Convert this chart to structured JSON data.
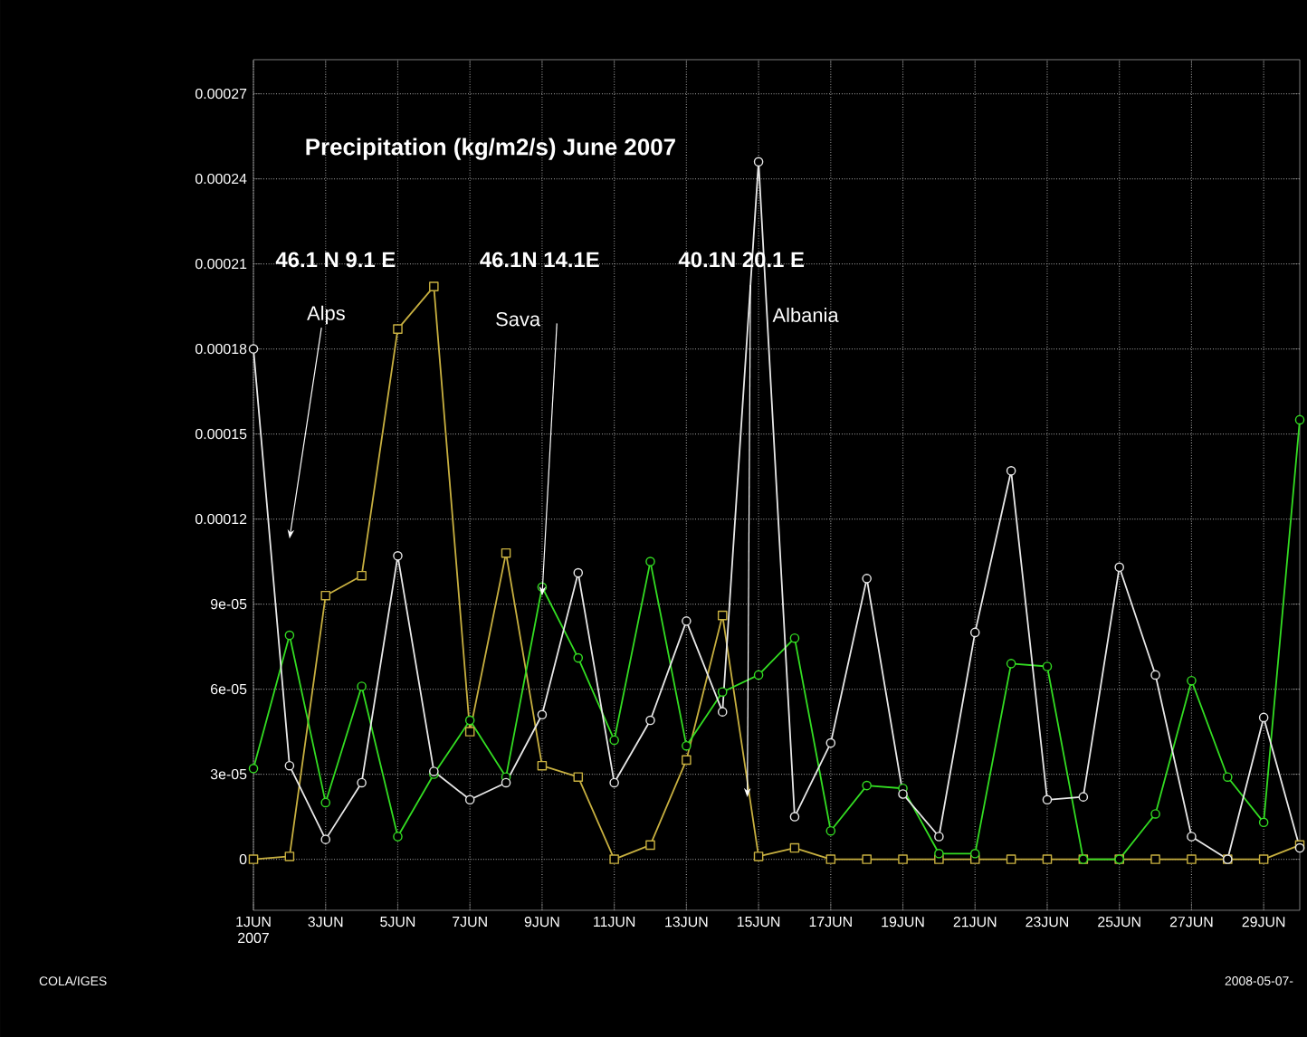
{
  "chart_data": {
    "type": "line",
    "title": "Precipitation (kg/m2/s)  June 2007",
    "x": [
      "2007-06-01",
      "2007-06-02",
      "2007-06-03",
      "2007-06-04",
      "2007-06-05",
      "2007-06-06",
      "2007-06-07",
      "2007-06-08",
      "2007-06-09",
      "2007-06-10",
      "2007-06-11",
      "2007-06-12",
      "2007-06-13",
      "2007-06-14",
      "2007-06-15",
      "2007-06-16",
      "2007-06-17",
      "2007-06-18",
      "2007-06-19",
      "2007-06-20",
      "2007-06-21",
      "2007-06-22",
      "2007-06-23",
      "2007-06-24",
      "2007-06-25",
      "2007-06-26",
      "2007-06-27",
      "2007-06-28",
      "2007-06-29",
      "2007-06-30"
    ],
    "series": [
      {
        "color": "#e8e8e8",
        "marker": "circle",
        "values": [
          0.00018,
          3.3e-05,
          7e-06,
          2.7e-05,
          0.000107,
          3.1e-05,
          2.1e-05,
          2.7e-05,
          5.1e-05,
          0.000101,
          2.7e-05,
          4.9e-05,
          8.4e-05,
          5.2e-05,
          0.000246,
          1.5e-05,
          4.1e-05,
          9.9e-05,
          2.3e-05,
          8e-06,
          8e-05,
          0.000137,
          2.1e-05,
          2.2e-05,
          0.000103,
          6.5e-05,
          8e-06,
          0.0,
          5e-05,
          4e-06
        ]
      },
      {
        "color": "#33dd22",
        "marker": "circle",
        "values": [
          3.2e-05,
          7.9e-05,
          2e-05,
          6.1e-05,
          8e-06,
          3e-05,
          4.9e-05,
          2.9e-05,
          9.6e-05,
          7.1e-05,
          4.2e-05,
          0.000105,
          4e-05,
          5.9e-05,
          6.5e-05,
          7.8e-05,
          1e-05,
          2.6e-05,
          2.5e-05,
          2e-06,
          2e-06,
          6.9e-05,
          6.8e-05,
          0.0,
          0.0,
          1.6e-05,
          6.3e-05,
          2.9e-05,
          1.3e-05,
          0.000155
        ]
      },
      {
        "color": "#c8b040",
        "marker": "square",
        "values": [
          0.0,
          1e-06,
          9.3e-05,
          0.0001,
          0.000187,
          0.000202,
          4.5e-05,
          0.000108,
          3.3e-05,
          2.9e-05,
          0.0,
          5e-06,
          3.5e-05,
          8.6e-05,
          1e-06,
          4e-06,
          0.0,
          0.0,
          0.0,
          0.0,
          0.0,
          0.0,
          0.0,
          0.0,
          0.0,
          0.0,
          0.0,
          0.0,
          0.0,
          5e-06
        ]
      }
    ],
    "xlim": [
      "2007-06-01",
      "2007-06-30"
    ],
    "xticks": [
      {
        "value": "2007-06-01",
        "label": "1JUN 2007"
      },
      {
        "value": "2007-06-03",
        "label": "3JUN"
      },
      {
        "value": "2007-06-05",
        "label": "5JUN"
      },
      {
        "value": "2007-06-07",
        "label": "7JUN"
      },
      {
        "value": "2007-06-09",
        "label": "9JUN"
      },
      {
        "value": "2007-06-11",
        "label": "11JUN"
      },
      {
        "value": "2007-06-13",
        "label": "13JUN"
      },
      {
        "value": "2007-06-15",
        "label": "15JUN"
      },
      {
        "value": "2007-06-17",
        "label": "17JUN"
      },
      {
        "value": "2007-06-19",
        "label": "19JUN"
      },
      {
        "value": "2007-06-21",
        "label": "21JUN"
      },
      {
        "value": "2007-06-23",
        "label": "23JUN"
      },
      {
        "value": "2007-06-25",
        "label": "25JUN"
      },
      {
        "value": "2007-06-27",
        "label": "27JUN"
      },
      {
        "value": "2007-06-29",
        "label": "29JUN"
      }
    ],
    "ylim": [
      -1.8e-05,
      0.000282
    ],
    "yticks": [
      0,
      {
        "value": 3e-05,
        "label": "3e-05"
      },
      {
        "value": 6e-05,
        "label": "6e-05"
      },
      {
        "value": 9e-05,
        "label": "9e-05"
      },
      0.00012,
      0.00015,
      0.00018,
      0.00021,
      0.00024,
      0.00027
    ],
    "grid": true,
    "line_style": "solid",
    "annotations": [
      "Alps",
      {
        "text": "Sava",
        "x": "2007-06-09",
        "y": 9.3e-05
      },
      "Albania",
      "46.1 N 9.1 E",
      "46.1N 14.1E",
      "40.1N  20.1 E",
      "COLA/IGES",
      "2008-05-07-"
    ]
  }
}
